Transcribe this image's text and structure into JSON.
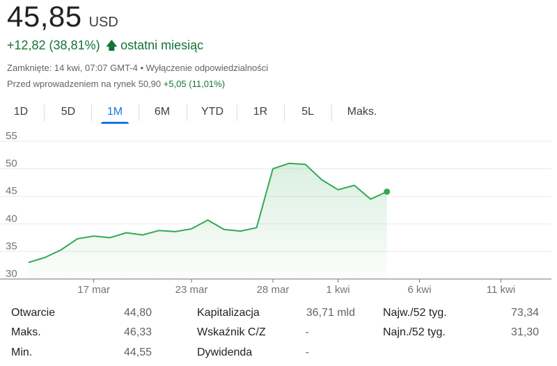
{
  "quote": {
    "price": "45,85",
    "currency": "USD",
    "change": "+12,82 (38,81%)",
    "period": "ostatni miesiąc",
    "closed_line": "Zamknięte: 14 kwi, 07:07 GMT-4 • Wyłączenie odpowiedzialności",
    "premarket_prefix": "Przed wprowadzeniem na rynek 50,90",
    "premarket_change": "+5,05 (11,01%)"
  },
  "tabs": [
    {
      "label": "1D",
      "active": false
    },
    {
      "label": "5D",
      "active": false
    },
    {
      "label": "1M",
      "active": true
    },
    {
      "label": "6M",
      "active": false
    },
    {
      "label": "YTD",
      "active": false
    },
    {
      "label": "1R",
      "active": false
    },
    {
      "label": "5L",
      "active": false
    },
    {
      "label": "Maks.",
      "active": false
    }
  ],
  "colors": {
    "line": "#34a853",
    "positive_text": "#137333",
    "active_tab": "#1a73e8",
    "grid": "#e8eaed"
  },
  "chart_data": {
    "type": "area",
    "title": "",
    "xlabel": "",
    "ylabel": "",
    "ylim": [
      30,
      55
    ],
    "yticks": [
      30,
      35,
      40,
      45,
      50,
      55
    ],
    "x_tick_labels": [
      {
        "label": "17 mar",
        "day": 17
      },
      {
        "label": "23 mar",
        "day": 23
      },
      {
        "label": "28 mar",
        "day": 28
      },
      {
        "label": "1 kwi",
        "day": 32
      },
      {
        "label": "6 kwi",
        "day": 37
      },
      {
        "label": "11 kwi",
        "day": 42
      }
    ],
    "xlim": [
      12.7,
      45.1
    ],
    "grid": true,
    "series": [
      {
        "values": [
          {
            "day": 13,
            "y": 33.0
          },
          {
            "day": 14,
            "y": 33.9
          },
          {
            "day": 15,
            "y": 35.3
          },
          {
            "day": 16,
            "y": 37.3
          },
          {
            "day": 17,
            "y": 37.8
          },
          {
            "day": 18,
            "y": 37.5
          },
          {
            "day": 19,
            "y": 38.4
          },
          {
            "day": 20,
            "y": 38.0
          },
          {
            "day": 21,
            "y": 38.8
          },
          {
            "day": 22,
            "y": 38.6
          },
          {
            "day": 23,
            "y": 39.1
          },
          {
            "day": 24,
            "y": 40.7
          },
          {
            "day": 25,
            "y": 39.0
          },
          {
            "day": 26,
            "y": 38.7
          },
          {
            "day": 27,
            "y": 39.3
          },
          {
            "day": 28,
            "y": 50.0
          },
          {
            "day": 29,
            "y": 51.0
          },
          {
            "day": 30,
            "y": 50.8
          },
          {
            "day": 31,
            "y": 48.0
          },
          {
            "day": 32,
            "y": 46.2
          },
          {
            "day": 33,
            "y": 47.0
          },
          {
            "day": 34,
            "y": 44.5
          },
          {
            "day": 35,
            "y": 45.85
          }
        ]
      }
    ]
  },
  "stats": [
    {
      "label": "Otwarcie",
      "value": "44,80"
    },
    {
      "label": "Maks.",
      "value": "46,33"
    },
    {
      "label": "Min.",
      "value": "44,55"
    },
    {
      "label": "Kapitalizacja",
      "value": "36,71 mld"
    },
    {
      "label": "Wskaźnik C/Z",
      "value": "-"
    },
    {
      "label": "Dywidenda",
      "value": "-"
    },
    {
      "label": "Najw./52 tyg.",
      "value": "73,34"
    },
    {
      "label": "Najn./52 tyg.",
      "value": "31,30"
    }
  ]
}
